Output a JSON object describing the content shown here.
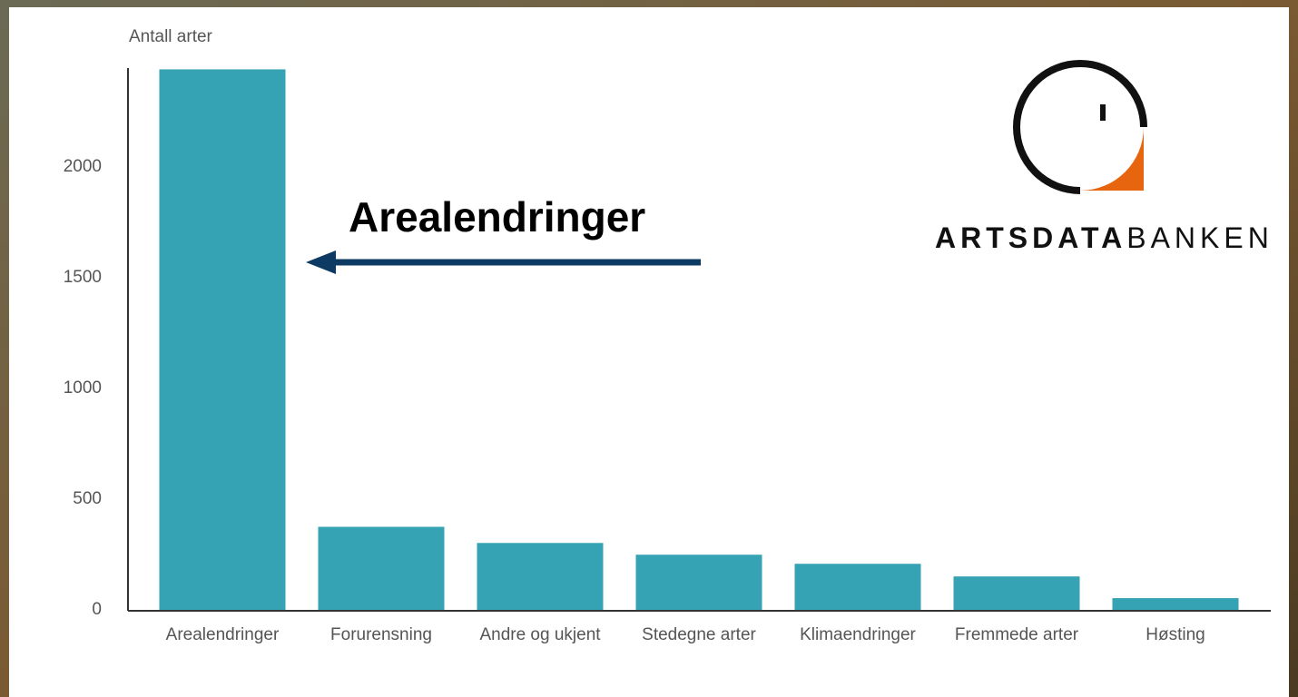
{
  "chart_data": {
    "type": "bar",
    "y_label": "Antall arter",
    "annotation": "Arealendringer",
    "categories": [
      "Arealendringer",
      "Forurensning",
      "Andre og ukjent",
      "Stedegne arter",
      "Klimaendringer",
      "Fremmede arter",
      "Høsting"
    ],
    "values": [
      2440,
      375,
      302,
      249,
      208,
      151,
      53
    ],
    "color": "#35a3b3",
    "ylim": [
      0,
      2450
    ],
    "yticks": [
      0,
      500,
      1000,
      1500,
      2000
    ],
    "grid": false
  },
  "logo": {
    "text": [
      "ARTSDATA",
      "BANKEN"
    ]
  }
}
